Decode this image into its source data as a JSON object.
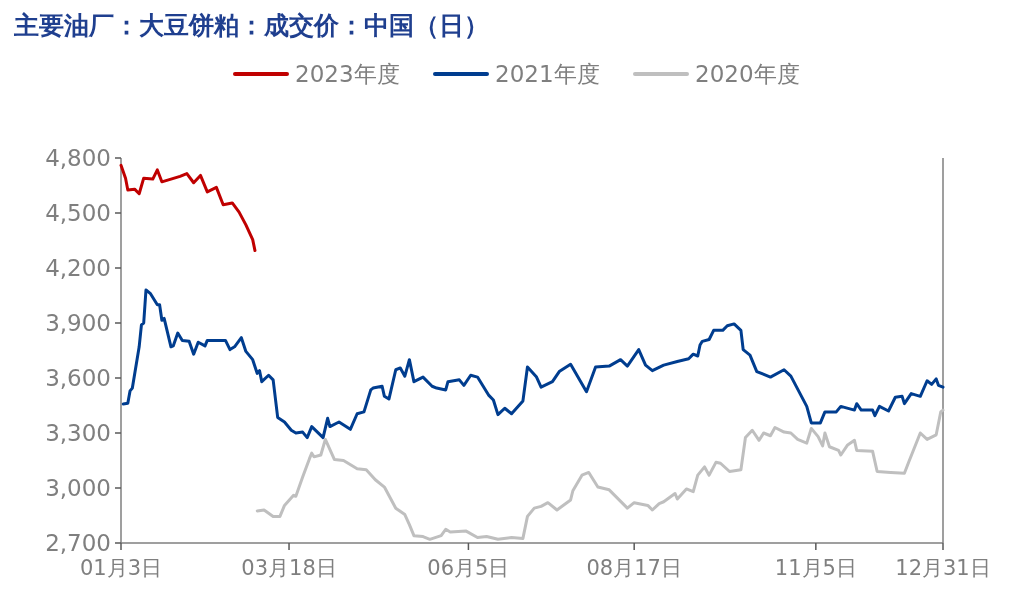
{
  "chart_data": {
    "type": "line",
    "title": "主要油厂：大豆饼粕：成交价：中国（日）",
    "legend": "top",
    "xlim": [
      "--01-03",
      "--12-31"
    ],
    "xticks": [
      {
        "value": "--01-03",
        "label": "01月3日"
      },
      {
        "value": "--03-18",
        "label": "03月18日"
      },
      {
        "value": "--06-05",
        "label": "06月5日"
      },
      {
        "value": "--08-17",
        "label": "08月17日"
      },
      {
        "value": "--11-05",
        "label": "11月5日"
      },
      {
        "value": "--12-31",
        "label": "12月31日"
      }
    ],
    "ylim": [
      2700,
      4800
    ],
    "yticks": [
      {
        "value": 2700,
        "label": "2,700"
      },
      {
        "value": 3000,
        "label": "3,000"
      },
      {
        "value": 3300,
        "label": "3,300"
      },
      {
        "value": 3600,
        "label": "3,600"
      },
      {
        "value": 3900,
        "label": "3,900"
      },
      {
        "value": 4200,
        "label": "4,200"
      },
      {
        "value": 4500,
        "label": "4,500"
      },
      {
        "value": 4800,
        "label": "4,800"
      }
    ],
    "series": [
      {
        "name": "2023年度",
        "color": "#c00000",
        "x": [
          "--01-03",
          "--01-05",
          "--01-06",
          "--01-09",
          "--01-11",
          "--01-13",
          "--01-17",
          "--01-19",
          "--01-21",
          "--01-29",
          "--02-01",
          "--02-04",
          "--02-07",
          "--02-10",
          "--02-14",
          "--02-17",
          "--02-21",
          "--02-24",
          "--02-27",
          "--03-02",
          "--03-03"
        ],
        "values": [
          4760,
          4690,
          4625,
          4630,
          4605,
          4690,
          4685,
          4735,
          4670,
          4700,
          4715,
          4665,
          4705,
          4615,
          4640,
          4545,
          4555,
          4505,
          4435,
          4355,
          4295
        ]
      },
      {
        "name": "2021年度",
        "color": "#003d8f",
        "x": [
          "--01-04",
          "--01-06",
          "--01-07",
          "--01-08",
          "--01-11",
          "--01-12",
          "--01-13",
          "--01-14",
          "--01-16",
          "--01-19",
          "--01-20",
          "--01-21",
          "--01-22",
          "--01-25",
          "--01-26",
          "--01-28",
          "--01-30",
          "--02-02",
          "--02-04",
          "--02-06",
          "--02-09",
          "--02-10",
          "--02-18",
          "--02-20",
          "--02-22",
          "--02-25",
          "--02-27",
          "--03-02",
          "--03-04",
          "--03-05",
          "--03-06",
          "--03-09",
          "--03-11",
          "--03-13",
          "--03-16",
          "--03-19",
          "--03-21",
          "--03-24",
          "--03-26",
          "--03-28",
          "--04-02",
          "--04-04",
          "--04-05",
          "--04-09",
          "--04-14",
          "--04-17",
          "--04-20",
          "--04-23",
          "--04-24",
          "--04-28",
          "--04-29",
          "--05-01",
          "--05-04",
          "--05-06",
          "--05-08",
          "--05-10",
          "--05-12",
          "--05-16",
          "--05-20",
          "--05-22",
          "--05-26",
          "--05-27",
          "--06-01",
          "--06-03",
          "--06-06",
          "--06-09",
          "--06-14",
          "--06-16",
          "--06-18",
          "--06-21",
          "--06-24",
          "--06-29",
          "--07-01",
          "--07-05",
          "--07-07",
          "--07-12",
          "--07-15",
          "--07-20",
          "--07-27",
          "--07-31",
          "--08-06",
          "--08-11",
          "--08-14",
          "--08-19",
          "--08-22",
          "--08-25",
          "--08-30",
          "--09-05",
          "--09-10",
          "--09-12",
          "--09-14",
          "--09-15",
          "--09-16",
          "--09-19",
          "--09-21",
          "--09-25",
          "--09-27",
          "--09-30",
          "--10-03",
          "--10-04",
          "--10-07",
          "--10-10",
          "--10-16",
          "--10-22",
          "--10-25",
          "--11-01",
          "--11-03",
          "--11-07",
          "--11-09",
          "--11-14",
          "--11-16",
          "--11-22",
          "--11-23",
          "--11-25",
          "--11-30",
          "--12-01",
          "--12-03",
          "--12-07",
          "--12-10",
          "--12-13",
          "--12-14",
          "--12-17",
          "--12-21",
          "--12-24",
          "--12-26",
          "--12-28",
          "--12-29",
          "--12-31"
        ],
        "values": [
          3458,
          3462,
          3530,
          3545,
          3770,
          3890,
          3900,
          4080,
          4060,
          4000,
          4000,
          3915,
          3925,
          3770,
          3775,
          3845,
          3805,
          3800,
          3730,
          3795,
          3775,
          3805,
          3805,
          3755,
          3770,
          3820,
          3745,
          3700,
          3625,
          3640,
          3580,
          3615,
          3590,
          3385,
          3360,
          3315,
          3300,
          3305,
          3275,
          3335,
          3275,
          3380,
          3335,
          3360,
          3320,
          3405,
          3415,
          3535,
          3545,
          3555,
          3500,
          3485,
          3645,
          3655,
          3610,
          3700,
          3580,
          3605,
          3555,
          3545,
          3535,
          3580,
          3590,
          3560,
          3615,
          3605,
          3505,
          3480,
          3400,
          3435,
          3405,
          3475,
          3660,
          3605,
          3550,
          3580,
          3635,
          3675,
          3525,
          3660,
          3665,
          3700,
          3665,
          3755,
          3670,
          3640,
          3670,
          3690,
          3705,
          3730,
          3720,
          3780,
          3800,
          3810,
          3860,
          3860,
          3885,
          3895,
          3860,
          3755,
          3725,
          3635,
          3605,
          3645,
          3610,
          3445,
          3355,
          3355,
          3415,
          3415,
          3445,
          3425,
          3460,
          3425,
          3425,
          3395,
          3445,
          3420,
          3495,
          3500,
          3460,
          3515,
          3500,
          3585,
          3565,
          3595,
          3560,
          3550
        ]
      },
      {
        "name": "2020年度",
        "color": "#bfbfbf",
        "x": [
          "--03-04",
          "--03-07",
          "--03-11",
          "--03-14",
          "--03-16",
          "--03-20",
          "--03-21",
          "--03-24",
          "--03-27",
          "--03-28",
          "--03-29",
          "--04-01",
          "--04-03",
          "--04-07",
          "--04-11",
          "--04-17",
          "--04-21",
          "--04-25",
          "--04-29",
          "--05-04",
          "--05-08",
          "--05-10",
          "--05-12",
          "--05-16",
          "--05-19",
          "--05-24",
          "--05-26",
          "--05-28",
          "--06-04",
          "--06-09",
          "--06-13",
          "--06-18",
          "--06-24",
          "--06-29",
          "--07-01",
          "--07-04",
          "--07-07",
          "--07-10",
          "--07-14",
          "--07-20",
          "--07-21",
          "--07-25",
          "--07-28",
          "--08-01",
          "--08-06",
          "--08-14",
          "--08-17",
          "--08-23",
          "--08-25",
          "--08-28",
          "--08-30",
          "--09-04",
          "--09-05",
          "--09-09",
          "--09-12",
          "--09-14",
          "--09-17",
          "--09-19",
          "--09-22",
          "--09-24",
          "--09-28",
          "--10-03",
          "--10-05",
          "--10-08",
          "--10-11",
          "--10-13",
          "--10-16",
          "--10-18",
          "--10-22",
          "--10-25",
          "--10-28",
          "--11-01",
          "--11-03",
          "--11-06",
          "--11-08",
          "--11-09",
          "--11-11",
          "--11-15",
          "--11-16",
          "--11-19",
          "--11-22",
          "--11-23",
          "--11-30",
          "--12-02",
          "--12-08",
          "--12-14",
          "--12-16",
          "--12-21",
          "--12-24",
          "--12-28",
          "--12-30",
          "--12-31"
        ],
        "values": [
          2875,
          2880,
          2845,
          2845,
          2905,
          2960,
          2955,
          3060,
          3160,
          3190,
          3170,
          3180,
          3265,
          3155,
          3150,
          3105,
          3100,
          3045,
          3005,
          2890,
          2855,
          2800,
          2740,
          2735,
          2720,
          2740,
          2775,
          2760,
          2765,
          2730,
          2735,
          2720,
          2730,
          2725,
          2845,
          2890,
          2900,
          2920,
          2880,
          2935,
          2985,
          3070,
          3085,
          3005,
          2990,
          2890,
          2920,
          2905,
          2880,
          2915,
          2925,
          2970,
          2940,
          2995,
          2980,
          3070,
          3115,
          3070,
          3140,
          3135,
          3090,
          3100,
          3275,
          3315,
          3260,
          3300,
          3285,
          3330,
          3305,
          3300,
          3265,
          3245,
          3325,
          3280,
          3230,
          3300,
          3225,
          3205,
          3180,
          3235,
          3260,
          3205,
          3200,
          3090,
          3085,
          3080,
          3145,
          3300,
          3265,
          3290,
          3415,
          3425
        ]
      }
    ]
  }
}
